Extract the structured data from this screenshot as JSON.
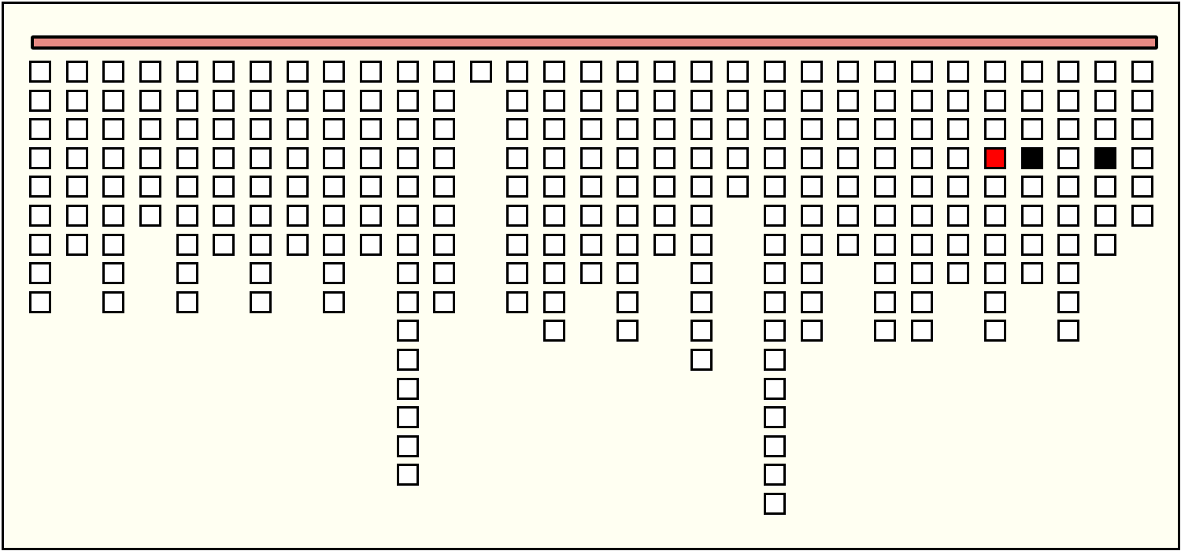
{
  "bar": {
    "color": "#e88a84"
  },
  "colors": {
    "background": "#fffff2",
    "empty": "#ffffff",
    "red": "#ff0000",
    "black": "#000000"
  },
  "columns": [
    9,
    7,
    9,
    6,
    9,
    7,
    9,
    7,
    9,
    7,
    15,
    9,
    1,
    9,
    10,
    8,
    10,
    7,
    11,
    5,
    16,
    10,
    7,
    10,
    10,
    8,
    10,
    8,
    10,
    7,
    6
  ],
  "special_cells": [
    {
      "column": 27,
      "row": 4,
      "state": "red"
    },
    {
      "column": 28,
      "row": 4,
      "state": "black"
    },
    {
      "column": 30,
      "row": 4,
      "state": "black"
    }
  ]
}
